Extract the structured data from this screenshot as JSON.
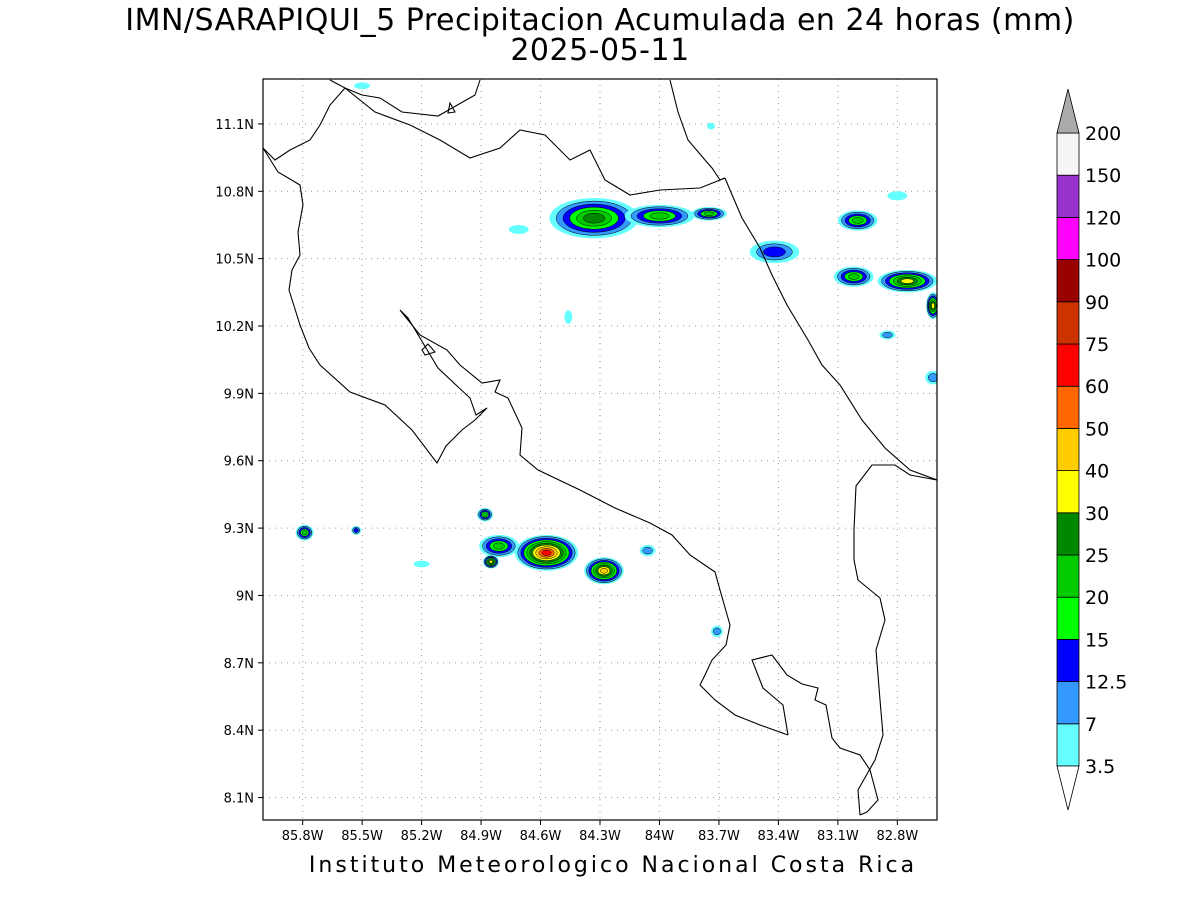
{
  "title": {
    "line1": "IMN/SARAPIQUI_5 Precipitacion Acumulada en 24 horas (mm)",
    "line2": "2025-05-11"
  },
  "footer": "Instituto Meteorologico Nacional Costa Rica",
  "map": {
    "lon_range": [
      -86.0,
      -82.6
    ],
    "lat_range": [
      8.0,
      11.3
    ],
    "lat_ticks": [
      {
        "value": 11.1,
        "label": "11.1N"
      },
      {
        "value": 10.8,
        "label": "10.8N"
      },
      {
        "value": 10.5,
        "label": "10.5N"
      },
      {
        "value": 10.2,
        "label": "10.2N"
      },
      {
        "value": 9.9,
        "label": "9.9N"
      },
      {
        "value": 9.6,
        "label": "9.6N"
      },
      {
        "value": 9.3,
        "label": "9.3N"
      },
      {
        "value": 9.0,
        "label": "9N"
      },
      {
        "value": 8.7,
        "label": "8.7N"
      },
      {
        "value": 8.4,
        "label": "8.4N"
      },
      {
        "value": 8.1,
        "label": "8.1N"
      }
    ],
    "lon_ticks": [
      {
        "value": -85.8,
        "label": "85.8W"
      },
      {
        "value": -85.5,
        "label": "85.5W"
      },
      {
        "value": -85.2,
        "label": "85.2W"
      },
      {
        "value": -84.9,
        "label": "84.9W"
      },
      {
        "value": -84.6,
        "label": "84.6W"
      },
      {
        "value": -84.3,
        "label": "84.3W"
      },
      {
        "value": -84.0,
        "label": "84W"
      },
      {
        "value": -83.7,
        "label": "83.7W"
      },
      {
        "value": -83.4,
        "label": "83.4W"
      },
      {
        "value": -83.1,
        "label": "83.1W"
      },
      {
        "value": -82.8,
        "label": "82.8W"
      }
    ],
    "grid": "dotted"
  },
  "colorbar": {
    "levels": [
      {
        "label": "3.5",
        "color": "#66ffff"
      },
      {
        "label": "7",
        "color": "#3399ff"
      },
      {
        "label": "12.5",
        "color": "#0000ff"
      },
      {
        "label": "15",
        "color": "#00ff00"
      },
      {
        "label": "20",
        "color": "#00cc00"
      },
      {
        "label": "25",
        "color": "#008800"
      },
      {
        "label": "30",
        "color": "#ffff00"
      },
      {
        "label": "40",
        "color": "#ffcc00"
      },
      {
        "label": "50",
        "color": "#ff6600"
      },
      {
        "label": "60",
        "color": "#ff0000"
      },
      {
        "label": "75",
        "color": "#cc3300"
      },
      {
        "label": "90",
        "color": "#990000"
      },
      {
        "label": "100",
        "color": "#ff00ff"
      },
      {
        "label": "120",
        "color": "#9933cc"
      },
      {
        "label": "150",
        "color": "#f5f5f5"
      },
      {
        "label": "200",
        "color": ""
      }
    ],
    "top_arrow_color": "#aaaaaa",
    "bottom_arrow_color": "#ffffff"
  },
  "precip_cells": [
    {
      "lon": -84.33,
      "lat": 10.68,
      "w": 0.45,
      "h": 0.18,
      "max_level": 5
    },
    {
      "lon": -84.0,
      "lat": 10.69,
      "w": 0.35,
      "h": 0.1,
      "max_level": 4
    },
    {
      "lon": -83.75,
      "lat": 10.7,
      "w": 0.18,
      "h": 0.06,
      "max_level": 4
    },
    {
      "lon": -83.42,
      "lat": 10.53,
      "w": 0.25,
      "h": 0.1,
      "max_level": 2
    },
    {
      "lon": -83.0,
      "lat": 10.67,
      "w": 0.2,
      "h": 0.09,
      "max_level": 4
    },
    {
      "lon": -82.75,
      "lat": 10.4,
      "w": 0.3,
      "h": 0.1,
      "max_level": 6
    },
    {
      "lon": -83.02,
      "lat": 10.42,
      "w": 0.2,
      "h": 0.09,
      "max_level": 4
    },
    {
      "lon": -82.62,
      "lat": 10.29,
      "w": 0.07,
      "h": 0.12,
      "max_level": 6
    },
    {
      "lon": -84.57,
      "lat": 9.19,
      "w": 0.32,
      "h": 0.16,
      "max_level": 9
    },
    {
      "lon": -84.28,
      "lat": 9.11,
      "w": 0.2,
      "h": 0.12,
      "max_level": 7
    },
    {
      "lon": -84.81,
      "lat": 9.22,
      "w": 0.2,
      "h": 0.1,
      "max_level": 4
    },
    {
      "lon": -84.85,
      "lat": 9.15,
      "w": 0.08,
      "h": 0.06,
      "max_level": 6
    },
    {
      "lon": -84.88,
      "lat": 9.36,
      "w": 0.08,
      "h": 0.06,
      "max_level": 4
    },
    {
      "lon": -85.79,
      "lat": 9.28,
      "w": 0.09,
      "h": 0.07,
      "max_level": 4
    },
    {
      "lon": -85.53,
      "lat": 9.29,
      "w": 0.05,
      "h": 0.04,
      "max_level": 2
    },
    {
      "lon": -83.71,
      "lat": 8.84,
      "w": 0.06,
      "h": 0.05,
      "max_level": 1
    },
    {
      "lon": -82.62,
      "lat": 9.97,
      "w": 0.08,
      "h": 0.06,
      "max_level": 1
    },
    {
      "lon": -82.85,
      "lat": 10.16,
      "w": 0.08,
      "h": 0.04,
      "max_level": 1
    },
    {
      "lon": -84.71,
      "lat": 10.63,
      "w": 0.1,
      "h": 0.04,
      "max_level": 0
    },
    {
      "lon": -84.46,
      "lat": 10.24,
      "w": 0.04,
      "h": 0.06,
      "max_level": 0
    },
    {
      "lon": -84.06,
      "lat": 9.2,
      "w": 0.08,
      "h": 0.05,
      "max_level": 1
    },
    {
      "lon": -85.2,
      "lat": 9.14,
      "w": 0.08,
      "h": 0.03,
      "max_level": 0
    },
    {
      "lon": -85.5,
      "lat": 11.27,
      "w": 0.08,
      "h": 0.03,
      "max_level": 0
    },
    {
      "lon": -83.74,
      "lat": 11.09,
      "w": 0.04,
      "h": 0.03,
      "max_level": 0
    },
    {
      "lon": -82.8,
      "lat": 10.78,
      "w": 0.1,
      "h": 0.04,
      "max_level": 0
    }
  ]
}
